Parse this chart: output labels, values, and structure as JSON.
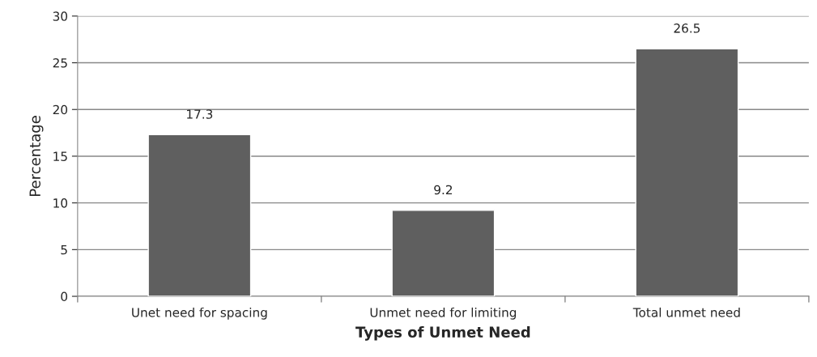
{
  "chart_data": {
    "type": "bar",
    "xlabel": "Types of Unmet Need",
    "ylabel": "Percentage",
    "categories": [
      "Unet need for spacing",
      "Unmet need for limiting",
      "Total unmet need"
    ],
    "values": [
      17.3,
      9.2,
      26.5
    ],
    "color": "#5f5f5f",
    "ylim": [
      0,
      30
    ],
    "yticks": [
      0,
      5,
      10,
      15,
      20,
      25,
      30
    ],
    "grid": "y",
    "data_labels": true
  }
}
